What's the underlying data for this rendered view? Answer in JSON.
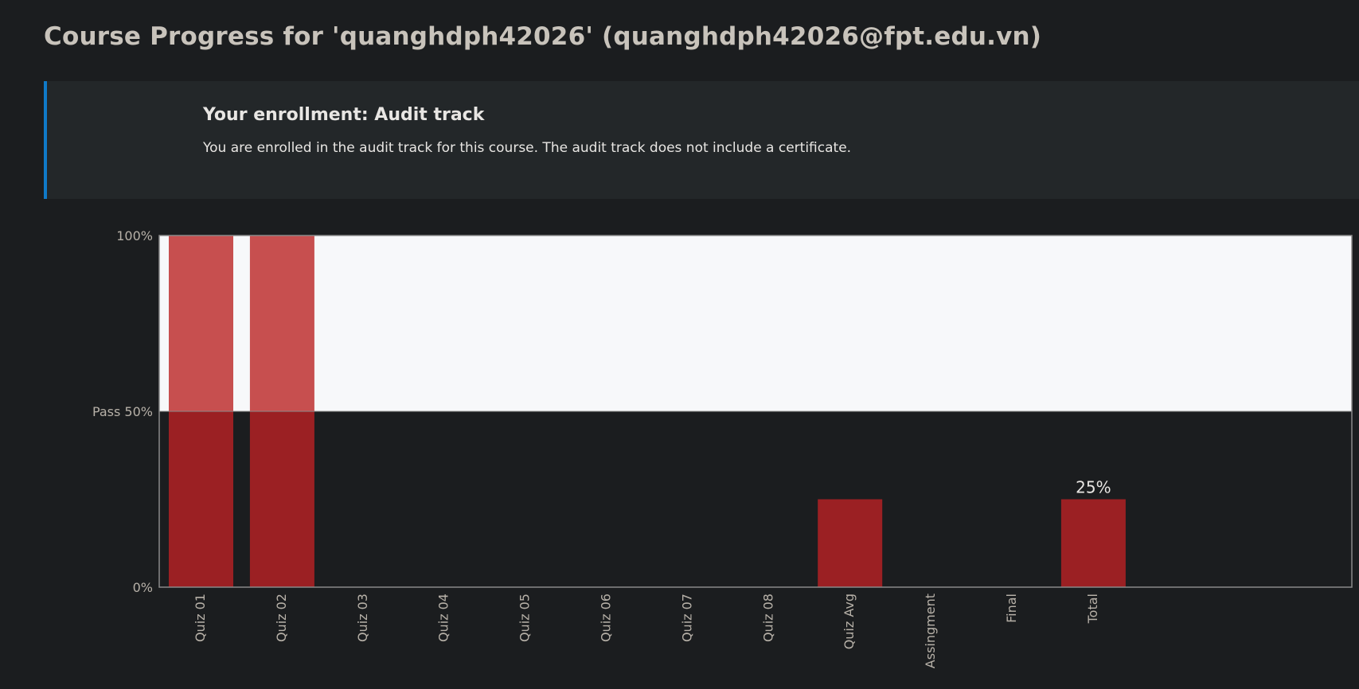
{
  "page": {
    "title": "Course Progress for 'quanghdph42026' (quanghdph42026@fpt.edu.vn)"
  },
  "enrollment": {
    "title": "Your enrollment: Audit track",
    "message": "You are enrolled in the audit track for this course. The audit track does not include a certificate."
  },
  "colors": {
    "background": "#1b1d1f",
    "above_pass_band": "#f7f8fa",
    "bar_color": "#9b2023",
    "bar_above_pass_color": "#c74f4f",
    "accent_border": "#0f7ac8"
  },
  "chart_data": {
    "type": "bar",
    "categories": [
      "Quiz 01",
      "Quiz 02",
      "Quiz 03",
      "Quiz 04",
      "Quiz 05",
      "Quiz 06",
      "Quiz 07",
      "Quiz 08",
      "Quiz Avg",
      "Assingment",
      "Final",
      "Total"
    ],
    "values": [
      100,
      100,
      0,
      0,
      0,
      0,
      0,
      0,
      25,
      0,
      0,
      25
    ],
    "y_ticks": [
      {
        "value": 100,
        "label": "100%"
      },
      {
        "value": 50,
        "label": "Pass 50%"
      },
      {
        "value": 0,
        "label": "0%"
      }
    ],
    "pass_threshold": 50,
    "ylim": [
      0,
      100
    ],
    "data_labels": [
      {
        "category": "Total",
        "label": "25%"
      }
    ],
    "title": "",
    "xlabel": "",
    "ylabel": ""
  }
}
